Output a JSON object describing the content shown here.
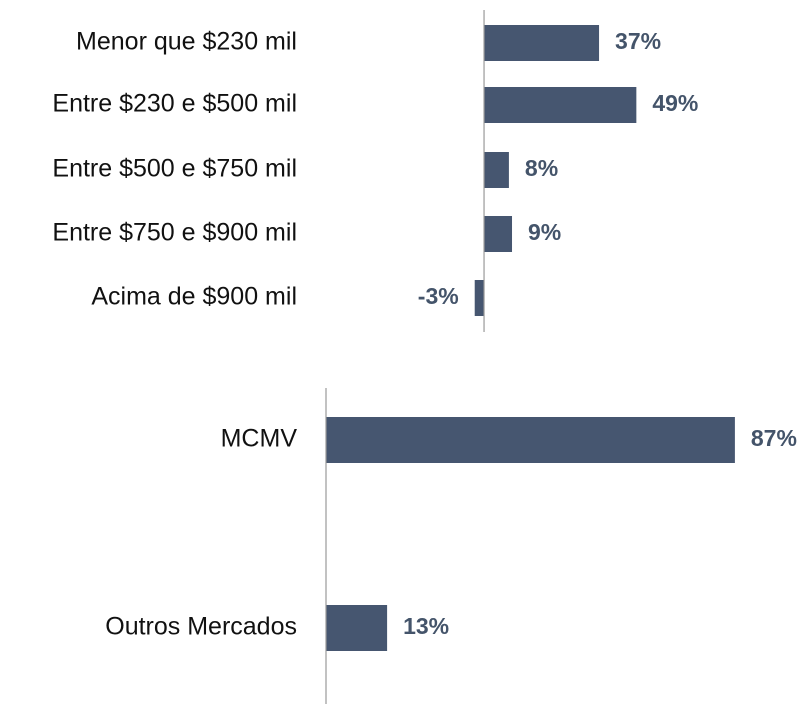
{
  "chart_data": [
    {
      "type": "bar",
      "orientation": "horizontal",
      "categories": [
        "Menor que $230 mil",
        "Entre $230 e $500 mil",
        "Entre $500 e $750 mil",
        "Entre $750 e $900 mil",
        "Acima de $900 mil"
      ],
      "values": [
        37,
        49,
        8,
        9,
        -3
      ],
      "value_labels": [
        "37%",
        "49%",
        "8%",
        "9%",
        "-3%"
      ],
      "color": "#465670",
      "xlim": [
        -5,
        55
      ]
    },
    {
      "type": "bar",
      "orientation": "horizontal",
      "categories": [
        "MCMV",
        "Outros Mercados"
      ],
      "values": [
        87,
        13
      ],
      "value_labels": [
        "87%",
        "13%"
      ],
      "color": "#465670",
      "xlim": [
        0,
        100
      ]
    }
  ]
}
